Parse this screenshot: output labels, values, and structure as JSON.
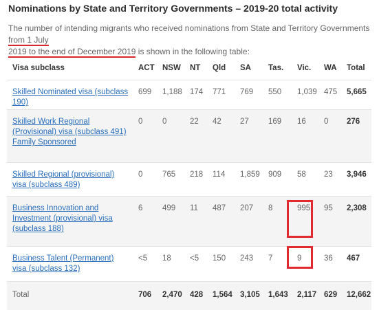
{
  "heading": "Nominations by State and Territory Governments – 2019-20 total activity",
  "intro": [
    "The number of intending migrants who received nominations from State and Territory Governments ",
    "from 1 July",
    "2019 to the end of December 2019",
    " is shown in the following table:"
  ],
  "table": {
    "header": [
      "Visa subclass",
      "ACT",
      "NSW",
      "NT",
      "Qld",
      "SA",
      "Tas.",
      "Vic.",
      "WA",
      "Total"
    ],
    "rows": [
      [
        "Skilled Nominated visa (subclass 190)",
        "699",
        "1,188",
        "174",
        "771",
        "769",
        "550",
        "1,039",
        "475",
        "5,665"
      ],
      [
        "Skilled Work Regional (Provisional) visa (subclass 491) Family Sponsored",
        "0",
        "0",
        "22",
        "42",
        "27",
        "169",
        "16",
        "0",
        "276"
      ],
      [
        "Skilled Regional (provisional) visa (subclass 489)",
        "0",
        "765",
        "218",
        "114",
        "1,859",
        "909",
        "58",
        "23",
        "3,946"
      ],
      [
        "Business Innovation and Investment (provisional) visa (subclass 188)",
        "6",
        "499",
        "11",
        "487",
        "207",
        "8",
        "995",
        "95",
        "2,308"
      ],
      [
        "Business Talent (Permanent) visa (subclass 132)",
        "<5",
        "18",
        "<5",
        "150",
        "243",
        "7",
        "9",
        "36",
        "467"
      ]
    ],
    "total": [
      "Total",
      "706",
      "2,470",
      "428",
      "1,564",
      "3,105",
      "1,643",
      "2,117",
      "629",
      "12,662"
    ]
  }
}
